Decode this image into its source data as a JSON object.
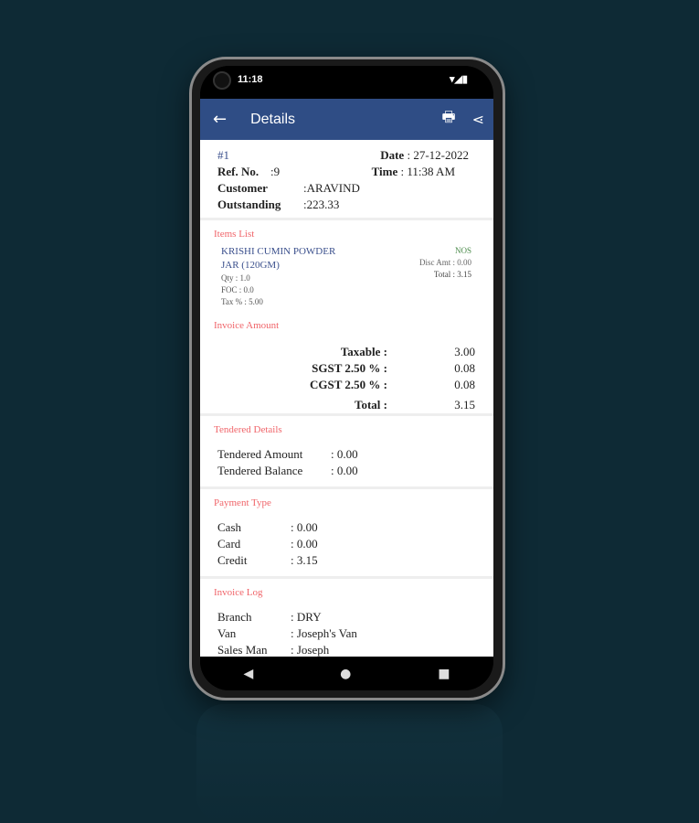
{
  "status": {
    "time": "11:18"
  },
  "appbar": {
    "title": "Details"
  },
  "header": {
    "number": "#1",
    "date_label": "Date",
    "date": "27-12-2022",
    "ref_label": "Ref. No.",
    "ref": "9",
    "time_label": "Time",
    "time": "11:38 AM",
    "customer_label": "Customer",
    "customer": "ARAVIND",
    "outstanding_label": "Outstanding",
    "outstanding": "223.33"
  },
  "items": {
    "heading": "Items List",
    "list": [
      {
        "name1": "KRISHI CUMIN POWDER",
        "name2": "JAR (120GM)",
        "qty": "Qty : 1.0",
        "foc": "FOC : 0.0",
        "tax": "Tax % : 5.00",
        "unit": "NOS",
        "disc": "Disc Amt : 0.00",
        "total": "Total : 3.15"
      }
    ]
  },
  "invoice": {
    "heading": "Invoice Amount",
    "rows": [
      {
        "label": "Taxable :",
        "value": "3.00"
      },
      {
        "label": "SGST 2.50 % :",
        "value": "0.08"
      },
      {
        "label": "CGST 2.50 % :",
        "value": "0.08"
      },
      {
        "label": "Total :",
        "value": "3.15"
      }
    ]
  },
  "tendered": {
    "heading": "Tendered Details",
    "rows": [
      {
        "label": "Tendered Amount",
        "value": ": 0.00"
      },
      {
        "label": "Tendered Balance",
        "value": ": 0.00"
      }
    ]
  },
  "payment": {
    "heading": "Payment Type",
    "rows": [
      {
        "label": "Cash",
        "value": ": 0.00"
      },
      {
        "label": "Card",
        "value": ": 0.00"
      },
      {
        "label": "Credit",
        "value": ": 3.15"
      }
    ]
  },
  "log": {
    "heading": "Invoice Log",
    "rows": [
      {
        "label": "Branch",
        "value": ": DRY"
      },
      {
        "label": "Van",
        "value": ": Joseph's Van"
      },
      {
        "label": "Sales Man",
        "value": ": Joseph"
      }
    ]
  },
  "colors": {
    "appbar": "#2f4d85",
    "section_heading": "#f0656a",
    "background": "#0e2a35"
  }
}
